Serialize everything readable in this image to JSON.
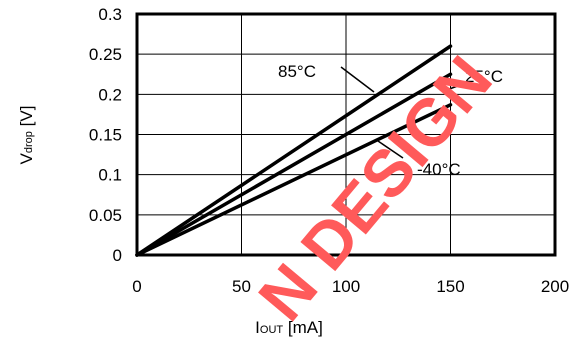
{
  "chart_data": {
    "type": "line",
    "title": "",
    "xlabel": {
      "main": "I",
      "sub": "OUT",
      "unit": " [mA]"
    },
    "ylabel": {
      "main": "V",
      "sub": "drop",
      "unit": " [V]"
    },
    "xlim": [
      0,
      200
    ],
    "ylim": [
      0,
      0.3
    ],
    "xticks": [
      "0",
      "50",
      "100",
      "150",
      "200"
    ],
    "yticks": [
      "0",
      "0.05",
      "0.1",
      "0.15",
      "0.2",
      "0.25",
      "0.3"
    ],
    "grid": true,
    "series": [
      {
        "name": "85°C",
        "x": [
          0,
          150
        ],
        "y": [
          0,
          0.26
        ]
      },
      {
        "name": "25°C",
        "x": [
          0,
          150
        ],
        "y": [
          0,
          0.225
        ]
      },
      {
        "name": "-40°C",
        "x": [
          0,
          150
        ],
        "y": [
          0,
          0.187
        ]
      }
    ],
    "colors": {
      "line": "#000000",
      "grid": "#000000",
      "watermark": "#ff4d4d"
    }
  },
  "watermark": "N DESIGN"
}
